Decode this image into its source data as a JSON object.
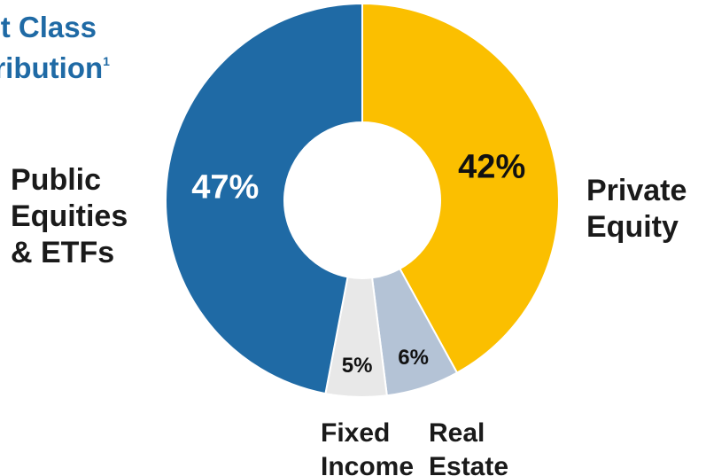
{
  "chart_data": {
    "type": "pie",
    "donut": true,
    "title": "Asset Class Distribution",
    "title_visible_lines": [
      "set Class",
      "stribution"
    ],
    "title_footnote": "1",
    "slices": [
      {
        "name": "Private Equity",
        "label_lines": [
          "Private",
          "Equity"
        ],
        "value": 42,
        "value_label": "42%",
        "color": "#fbbf00",
        "text_color": "#111111"
      },
      {
        "name": "Real Estate",
        "label_lines": [
          "Real",
          "Estate"
        ],
        "value": 6,
        "value_label": "6%",
        "color": "#b4c3d6",
        "text_color": "#111111"
      },
      {
        "name": "Fixed Income",
        "label_lines": [
          "Fixed",
          "Income"
        ],
        "value": 5,
        "value_label": "5%",
        "color": "#e8e8e8",
        "text_color": "#111111"
      },
      {
        "name": "Public Equities & ETFs",
        "label_lines": [
          "Public",
          "Equities",
          "& ETFs"
        ],
        "value": 47,
        "value_label": "47%",
        "color": "#1f6aa5",
        "text_color": "#ffffff"
      }
    ]
  }
}
